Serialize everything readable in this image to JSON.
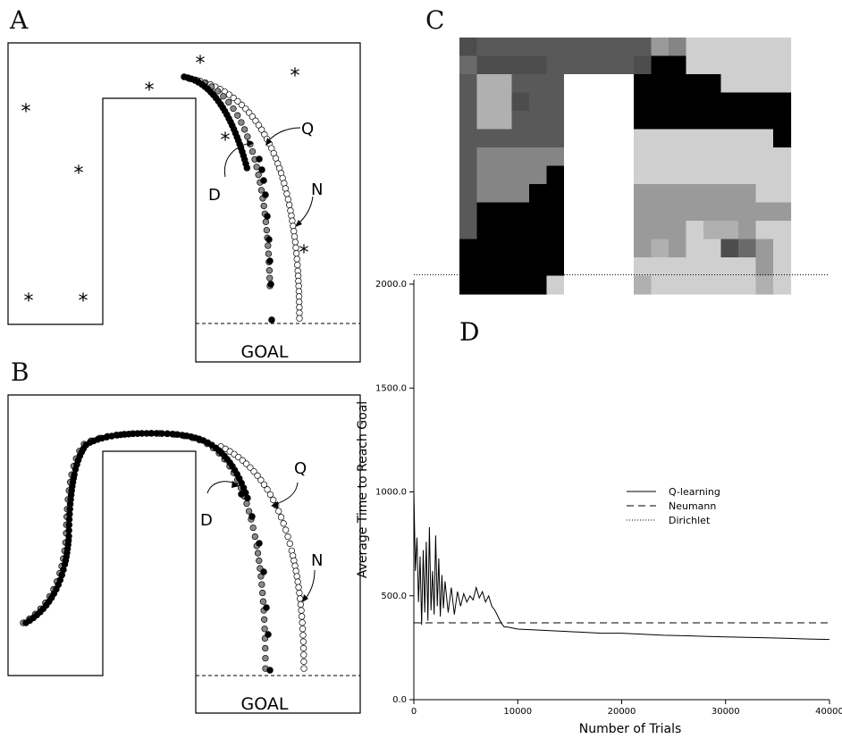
{
  "figure": {
    "panels": [
      {
        "id": "A",
        "label": "A"
      },
      {
        "id": "B",
        "label": "B"
      },
      {
        "id": "C",
        "label": "C"
      },
      {
        "id": "D",
        "label": "D"
      }
    ]
  },
  "maze": {
    "goal_label": "GOAL",
    "trajectory_labels": {
      "dirichlet": "D",
      "q_learning": "Q",
      "neumann": "N"
    },
    "marker_symbol": "*",
    "colors": {
      "dirichlet": "#000000",
      "q_learning": "#888888",
      "neumann": "#ffffff"
    }
  },
  "grid_palette": [
    "#000000",
    "#4d4d4d",
    "#595959",
    "#6a6a6a",
    "#858585",
    "#9a9a9a",
    "#b0b0b0",
    "#cfcfcf",
    "#ffffff"
  ],
  "chart_data": {
    "type": "line",
    "title": "",
    "xlabel": "Number of Trials",
    "ylabel": "Average Time to Reach Goal",
    "xlim": [
      0,
      40000
    ],
    "ylim": [
      0,
      2000
    ],
    "x_ticks": [
      "0",
      "10000",
      "20000",
      "30000",
      "40000"
    ],
    "y_ticks": [
      "0.0",
      "500.0",
      "1000.0",
      "1500.0",
      "2000.0"
    ],
    "grid": false,
    "legend_position": "center-right",
    "series": [
      {
        "name": "Q-learning",
        "style": "solid",
        "x": [
          0,
          150,
          300,
          450,
          600,
          750,
          900,
          1050,
          1200,
          1350,
          1500,
          1650,
          1800,
          1950,
          2100,
          2250,
          2400,
          2550,
          2700,
          2850,
          3000,
          3300,
          3600,
          3900,
          4200,
          4500,
          4800,
          5100,
          5400,
          5700,
          6000,
          6300,
          6600,
          6900,
          7200,
          7500,
          7800,
          8100,
          8400,
          8700,
          9000,
          10000,
          12000,
          14000,
          16000,
          18000,
          20000,
          22000,
          24000,
          26000,
          28000,
          30000,
          32000,
          34000,
          36000,
          38000,
          40000
        ],
        "values": [
          1010,
          620,
          780,
          470,
          690,
          360,
          720,
          420,
          760,
          380,
          830,
          430,
          620,
          410,
          790,
          450,
          680,
          400,
          600,
          440,
          570,
          420,
          540,
          410,
          520,
          450,
          510,
          470,
          500,
          480,
          540,
          490,
          520,
          470,
          500,
          450,
          430,
          400,
          370,
          350,
          350,
          340,
          335,
          330,
          325,
          320,
          320,
          315,
          310,
          308,
          305,
          302,
          300,
          298,
          295,
          292,
          290
        ]
      },
      {
        "name": "Neumann",
        "style": "dashed",
        "x": [
          0,
          40000
        ],
        "values": [
          370,
          370
        ]
      },
      {
        "name": "Dirichlet",
        "style": "dotted",
        "x": [
          0,
          40000
        ],
        "values": [
          2045,
          2045
        ]
      }
    ]
  }
}
